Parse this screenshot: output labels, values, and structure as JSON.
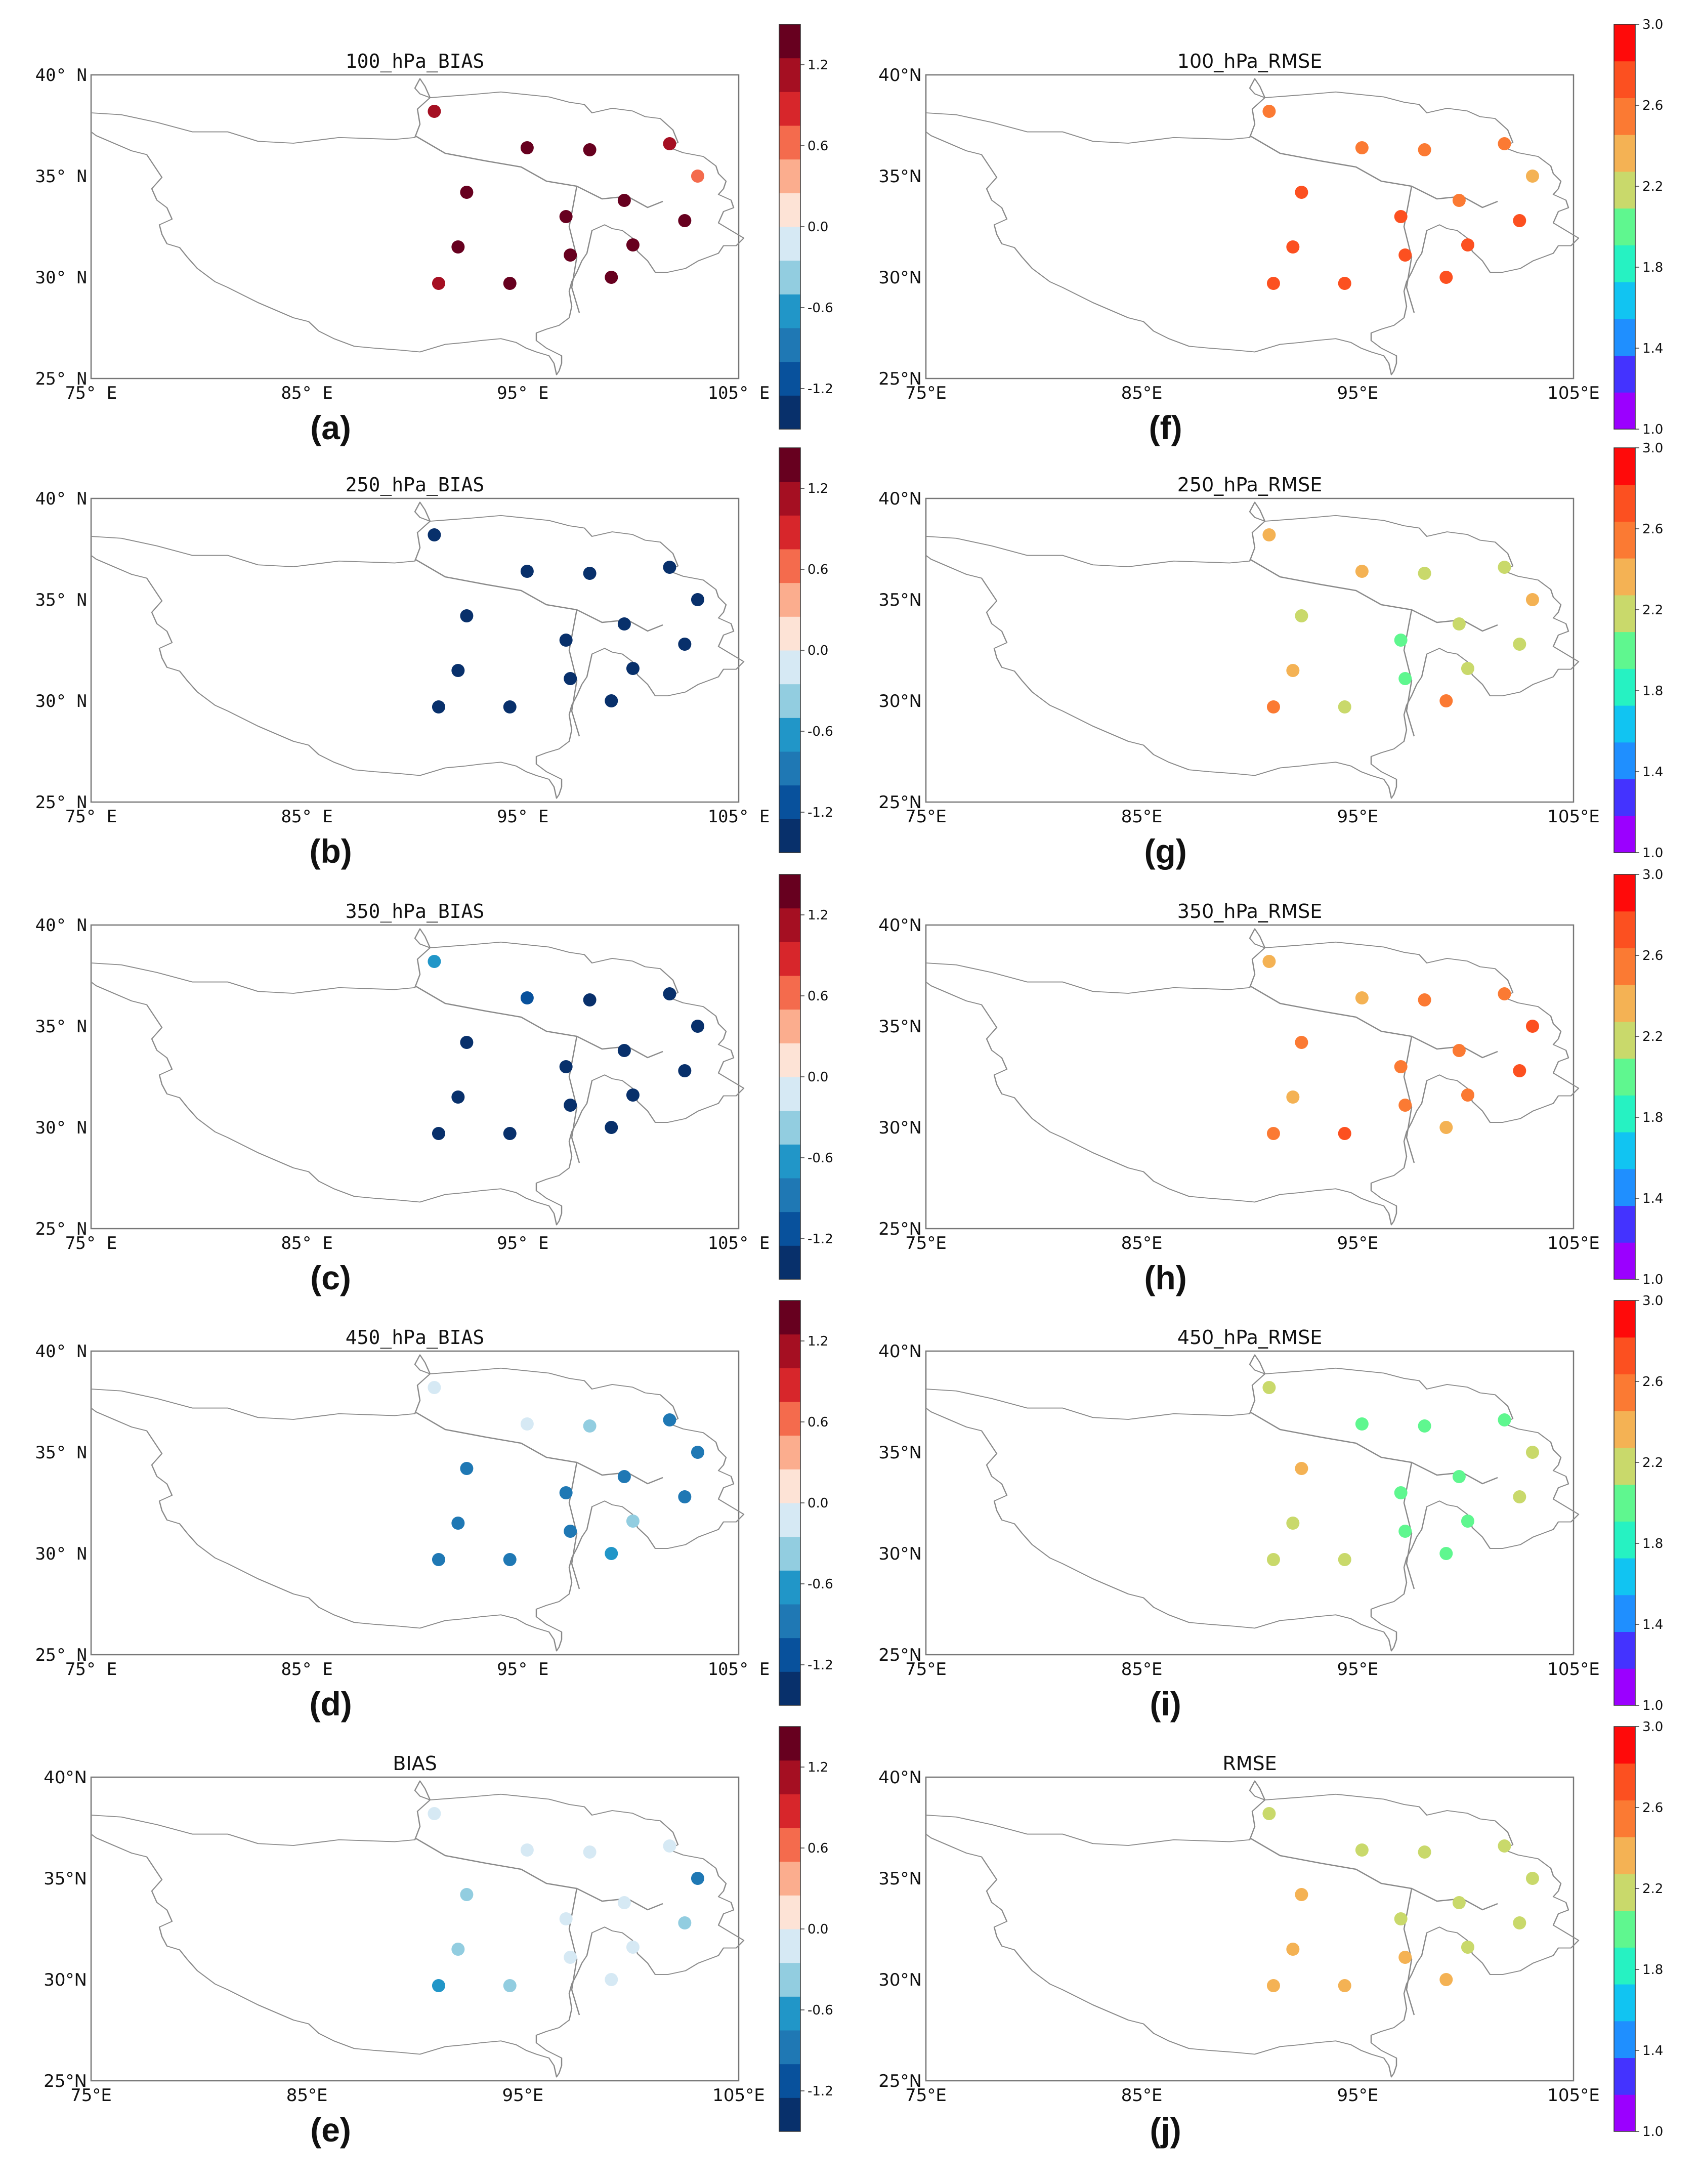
{
  "colors": {
    "bias_scale": [
      "#08306b",
      "#08519c",
      "#1f78b4",
      "#2196c8",
      "#92cde0",
      "#d6e9f4",
      "#fde3d6",
      "#fbad8e",
      "#f46b4d",
      "#d7262b",
      "#a50f22",
      "#67001f"
    ],
    "rmse_scale": [
      "#9b00ff",
      "#4433ff",
      "#1f8fff",
      "#11c4f2",
      "#26f2c2",
      "#5ff78f",
      "#c9d96b",
      "#f4b254",
      "#fb7a33",
      "#fc5020",
      "#ff0a0a"
    ],
    "border": "#8a8a8a"
  },
  "stations": [
    {
      "lon": 90.9,
      "lat": 38.2
    },
    {
      "lon": 95.2,
      "lat": 36.4
    },
    {
      "lon": 98.1,
      "lat": 36.3
    },
    {
      "lon": 101.8,
      "lat": 36.6
    },
    {
      "lon": 103.1,
      "lat": 35.0
    },
    {
      "lon": 92.4,
      "lat": 34.2
    },
    {
      "lon": 97.0,
      "lat": 33.0
    },
    {
      "lon": 99.7,
      "lat": 33.8
    },
    {
      "lon": 102.5,
      "lat": 32.8
    },
    {
      "lon": 92.0,
      "lat": 31.5
    },
    {
      "lon": 97.2,
      "lat": 31.1
    },
    {
      "lon": 100.1,
      "lat": 31.6
    },
    {
      "lon": 91.1,
      "lat": 29.7
    },
    {
      "lon": 94.4,
      "lat": 29.7
    },
    {
      "lon": 99.1,
      "lat": 30.0
    }
  ],
  "panels": [
    {
      "letter": "(a)",
      "title": "100_hPa_BIAS",
      "kind": "bias",
      "lon_ticks": [
        "75° E",
        "85° E",
        "95° E",
        "105° E"
      ],
      "lat_ticks": [
        "40° N",
        "35° N",
        "30° N",
        "25° N"
      ],
      "cb_ticks": [
        "1.2",
        "0.6",
        "0.0",
        "-0.6",
        "-1.2"
      ],
      "values": [
        1.0,
        1.3,
        1.3,
        1.1,
        0.7,
        1.3,
        1.3,
        1.3,
        1.3,
        1.3,
        1.3,
        1.3,
        1.1,
        1.3,
        1.3
      ]
    },
    {
      "letter": "(b)",
      "title": "250_hPa_BIAS",
      "kind": "bias",
      "lon_ticks": [
        "75° E",
        "85° E",
        "95° E",
        "105° E"
      ],
      "lat_ticks": [
        "40° N",
        "35° N",
        "30° N",
        "25° N"
      ],
      "cb_ticks": [
        "1.2",
        "0.6",
        "0.0",
        "-0.6",
        "-1.2"
      ],
      "values": [
        -1.4,
        -1.4,
        -1.4,
        -1.4,
        -1.4,
        -1.4,
        -1.4,
        -1.4,
        -1.4,
        -1.4,
        -1.4,
        -1.4,
        -1.4,
        -1.4,
        -1.4
      ]
    },
    {
      "letter": "(c)",
      "title": "350_hPa_BIAS",
      "kind": "bias",
      "lon_ticks": [
        "75° E",
        "85° E",
        "95° E",
        "105° E"
      ],
      "lat_ticks": [
        "40° N",
        "35° N",
        "30° N",
        "25° N"
      ],
      "cb_ticks": [
        "1.2",
        "0.6",
        "0.0",
        "-0.6",
        "-1.2"
      ],
      "values": [
        -0.7,
        -1.1,
        -1.4,
        -1.4,
        -1.4,
        -1.4,
        -1.4,
        -1.4,
        -1.4,
        -1.4,
        -1.4,
        -1.4,
        -1.4,
        -1.4,
        -1.4
      ]
    },
    {
      "letter": "(d)",
      "title": "450_hPa_BIAS",
      "kind": "bias",
      "lon_ticks": [
        "75° E",
        "85° E",
        "95° E",
        "105° E"
      ],
      "lat_ticks": [
        "40° N",
        "35° N",
        "30° N",
        "25° N"
      ],
      "cb_ticks": [
        "1.2",
        "0.6",
        "0.0",
        "-0.6",
        "-1.2"
      ],
      "values": [
        -0.1,
        -0.1,
        -0.4,
        -0.8,
        -0.9,
        -0.9,
        -0.8,
        -0.8,
        -0.9,
        -0.9,
        -0.9,
        -0.4,
        -0.9,
        -0.9,
        -0.7
      ]
    },
    {
      "letter": "(e)",
      "title": "BIAS",
      "kind": "bias",
      "lon_ticks": [
        "75°E",
        "85°E",
        "95°E",
        "105°E"
      ],
      "lat_ticks": [
        "40°N",
        "35°N",
        "30°N",
        "25°N"
      ],
      "cb_ticks": [
        "1.2",
        "0.6",
        "0.0",
        "-0.6",
        "-1.2"
      ],
      "values": [
        -0.1,
        -0.1,
        -0.1,
        -0.1,
        -0.8,
        -0.4,
        -0.1,
        -0.1,
        -0.4,
        -0.4,
        -0.1,
        -0.1,
        -0.7,
        -0.4,
        -0.1
      ]
    },
    {
      "letter": "(f)",
      "title": "100_hPa_RMSE",
      "kind": "rmse",
      "lon_ticks": [
        "75°E",
        "85°E",
        "95°E",
        "105°E"
      ],
      "lat_ticks": [
        "40°N",
        "35°N",
        "30°N",
        "25°N"
      ],
      "cb_ticks": [
        "3.0",
        "2.6",
        "2.2",
        "1.8",
        "1.4",
        "1.0"
      ],
      "values": [
        2.7,
        2.7,
        2.7,
        2.7,
        2.5,
        2.9,
        2.9,
        2.7,
        2.9,
        2.9,
        2.9,
        2.9,
        2.9,
        2.9,
        2.9
      ]
    },
    {
      "letter": "(g)",
      "title": "250_hPa_RMSE",
      "kind": "rmse",
      "lon_ticks": [
        "75°E",
        "85°E",
        "95°E",
        "105°E"
      ],
      "lat_ticks": [
        "40°N",
        "35°N",
        "30°N",
        "25°N"
      ],
      "cb_ticks": [
        "3.0",
        "2.6",
        "2.2",
        "1.8",
        "1.4",
        "1.0"
      ],
      "values": [
        2.5,
        2.5,
        2.3,
        2.3,
        2.5,
        2.3,
        2.1,
        2.3,
        2.3,
        2.5,
        2.1,
        2.3,
        2.7,
        2.3,
        2.7
      ]
    },
    {
      "letter": "(h)",
      "title": "350_hPa_RMSE",
      "kind": "rmse",
      "lon_ticks": [
        "75°E",
        "85°E",
        "95°E",
        "105°E"
      ],
      "lat_ticks": [
        "40°N",
        "35°N",
        "30°N",
        "25°N"
      ],
      "cb_ticks": [
        "3.0",
        "2.6",
        "2.2",
        "1.8",
        "1.4",
        "1.0"
      ],
      "values": [
        2.5,
        2.5,
        2.7,
        2.7,
        2.9,
        2.7,
        2.7,
        2.7,
        2.9,
        2.5,
        2.7,
        2.7,
        2.7,
        2.9,
        2.5
      ]
    },
    {
      "letter": "(i)",
      "title": "450_hPa_RMSE",
      "kind": "rmse",
      "lon_ticks": [
        "75°E",
        "85°E",
        "95°E",
        "105°E"
      ],
      "lat_ticks": [
        "40°N",
        "35°N",
        "30°N",
        "25°N"
      ],
      "cb_ticks": [
        "3.0",
        "2.6",
        "2.2",
        "1.8",
        "1.4",
        "1.0"
      ],
      "values": [
        2.3,
        2.0,
        2.0,
        2.0,
        2.3,
        2.5,
        2.0,
        2.0,
        2.3,
        2.3,
        2.0,
        2.0,
        2.3,
        2.3,
        2.0
      ]
    },
    {
      "letter": "(j)",
      "title": "RMSE",
      "kind": "rmse",
      "lon_ticks": [
        "75°E",
        "85°E",
        "95°E",
        "105°E"
      ],
      "lat_ticks": [
        "40°N",
        "35°N",
        "30°N",
        "25°N"
      ],
      "cb_ticks": [
        "3.0",
        "2.6",
        "2.2",
        "1.8",
        "1.4",
        "1.0"
      ],
      "values": [
        2.3,
        2.3,
        2.3,
        2.3,
        2.3,
        2.5,
        2.3,
        2.3,
        2.3,
        2.5,
        2.5,
        2.3,
        2.5,
        2.5,
        2.5
      ]
    }
  ]
}
